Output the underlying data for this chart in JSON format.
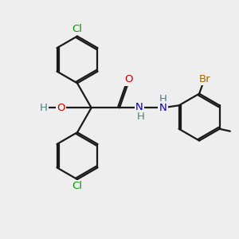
{
  "background_color": "#eeeeee",
  "atom_colors": {
    "C": "#000000",
    "H": "#4a8080",
    "O": "#cc0000",
    "N": "#0000cc",
    "Cl": "#009900",
    "Br": "#aa6600"
  },
  "bond_color": "#1a1a1a",
  "bond_lw": 1.6,
  "font_size": 9.5,
  "fig_size": [
    3.0,
    3.0
  ],
  "dpi": 100,
  "xlim": [
    0,
    10
  ],
  "ylim": [
    0,
    10
  ]
}
